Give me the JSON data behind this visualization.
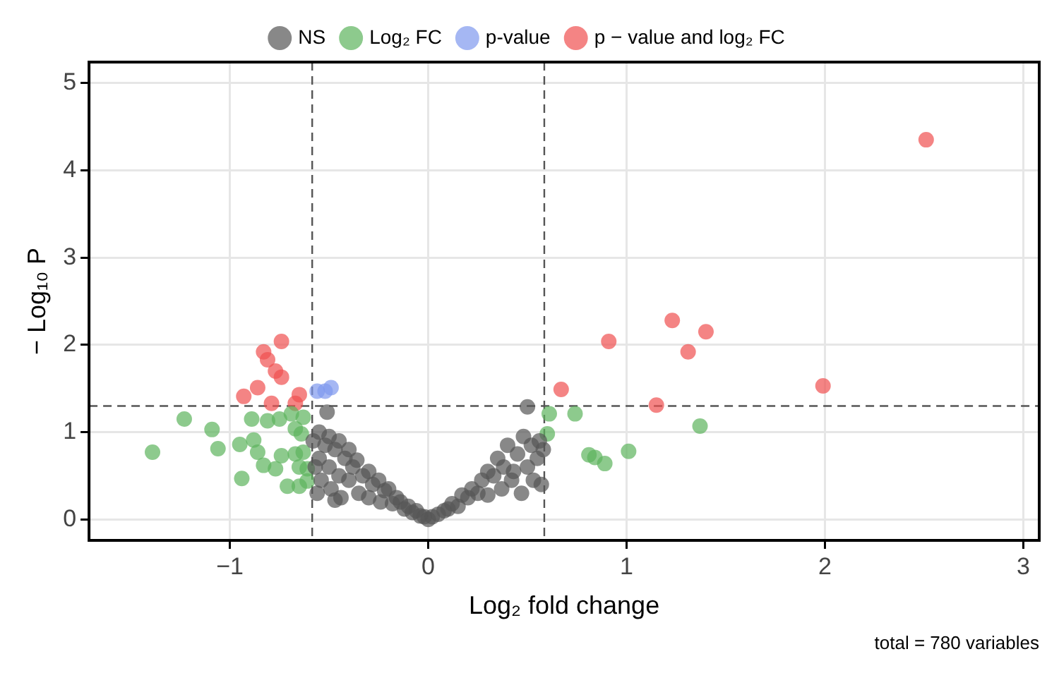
{
  "chart_data": {
    "type": "scatter",
    "xlabel": "Log₂ fold change",
    "ylabel": "− Log₁₀ P",
    "annotations": [
      "total = 780 variables"
    ],
    "xlim": [
      -1.71,
      3.08
    ],
    "ylim": [
      -0.24,
      5.24
    ],
    "xticks": [
      {
        "value": -1,
        "label": "−1"
      },
      0,
      1,
      2,
      3
    ],
    "yticks": [
      0,
      1,
      2,
      3,
      4,
      5
    ],
    "grid": true,
    "legend": "top",
    "marker": "circle",
    "ref_lines": [
      {
        "axis": "x",
        "value": -0.585,
        "color": "#555555",
        "line_style": "dashed"
      },
      {
        "axis": "x",
        "value": 0.585,
        "color": "#555555",
        "line_style": "dashed"
      },
      {
        "axis": "y",
        "value": 1.3,
        "color": "#555555",
        "line_style": "dashed"
      }
    ],
    "series": [
      {
        "name": "NS",
        "color": "#555555",
        "x": [
          -0.58,
          -0.57,
          -0.56,
          -0.55,
          -0.55,
          -0.54,
          -0.52,
          -0.51,
          -0.5,
          -0.5,
          -0.49,
          -0.47,
          -0.47,
          -0.45,
          -0.45,
          -0.44,
          -0.42,
          -0.4,
          -0.4,
          -0.38,
          -0.36,
          -0.35,
          -0.33,
          -0.3,
          -0.3,
          -0.28,
          -0.25,
          -0.24,
          -0.22,
          -0.2,
          -0.18,
          -0.16,
          -0.14,
          -0.12,
          -0.1,
          -0.08,
          -0.06,
          -0.04,
          -0.02,
          0,
          0.02,
          0.05,
          0.08,
          0.1,
          0.12,
          0.15,
          0.17,
          0.2,
          0.22,
          0.25,
          0.27,
          0.3,
          0.3,
          0.33,
          0.35,
          0.37,
          0.38,
          0.4,
          0.42,
          0.43,
          0.45,
          0.47,
          0.48,
          0.5,
          0.5,
          0.52,
          0.53,
          0.55,
          0.56,
          0.57,
          0.58
        ],
        "values": [
          0.9,
          0.6,
          0.3,
          1.0,
          0.7,
          0.45,
          0.85,
          1.23,
          0.95,
          0.6,
          0.35,
          0.8,
          0.22,
          0.9,
          0.5,
          0.25,
          0.7,
          0.8,
          0.45,
          0.6,
          0.68,
          0.3,
          0.5,
          0.55,
          0.25,
          0.4,
          0.45,
          0.2,
          0.33,
          0.35,
          0.18,
          0.25,
          0.2,
          0.12,
          0.15,
          0.08,
          0.1,
          0.04,
          0.03,
          0.0,
          0.03,
          0.06,
          0.1,
          0.12,
          0.18,
          0.15,
          0.28,
          0.25,
          0.35,
          0.3,
          0.45,
          0.55,
          0.28,
          0.5,
          0.7,
          0.35,
          0.6,
          0.85,
          0.45,
          0.55,
          0.75,
          0.3,
          0.95,
          0.6,
          1.29,
          0.85,
          0.45,
          0.7,
          0.9,
          0.4,
          0.8
        ]
      },
      {
        "name": "Log₂ FC",
        "color": "#5cb35c",
        "x": [
          -1.39,
          -1.23,
          -1.09,
          -1.06,
          -0.95,
          -0.94,
          -0.89,
          -0.88,
          -0.86,
          -0.83,
          -0.81,
          -0.77,
          -0.75,
          -0.74,
          -0.71,
          -0.69,
          -0.67,
          -0.67,
          -0.65,
          -0.65,
          -0.64,
          -0.63,
          -0.63,
          -0.61,
          -0.61,
          0.6,
          0.61,
          0.74,
          0.81,
          0.84,
          0.89,
          1.01,
          1.37
        ],
        "values": [
          0.77,
          1.15,
          1.03,
          0.81,
          0.86,
          0.47,
          1.15,
          0.91,
          0.77,
          0.62,
          1.13,
          0.58,
          1.15,
          0.73,
          0.38,
          1.21,
          1.04,
          0.75,
          0.38,
          0.6,
          0.98,
          0.77,
          1.17,
          0.44,
          0.58,
          0.98,
          1.21,
          1.21,
          0.74,
          0.71,
          0.64,
          0.78,
          1.07
        ]
      },
      {
        "name": "p-value",
        "color": "#7f98ee",
        "x": [
          -0.56,
          -0.52,
          -0.49
        ],
        "values": [
          1.47,
          1.47,
          1.51
        ]
      },
      {
        "name": "p − value and log₂ FC",
        "color": "#f05050",
        "x": [
          -0.93,
          -0.86,
          -0.83,
          -0.81,
          -0.79,
          -0.77,
          -0.74,
          -0.74,
          -0.72,
          -0.69,
          -0.67,
          -0.65,
          0.67,
          0.91,
          1.15,
          1.23,
          1.31,
          1.4,
          1.99,
          2.51
        ],
        "values": [
          1.41,
          1.51,
          1.92,
          1.83,
          1.33,
          1.7,
          2.04,
          1.63,
          null,
          null,
          1.33,
          1.43,
          1.49,
          2.04,
          1.31,
          2.28,
          1.92,
          2.15,
          1.53,
          4.35
        ]
      }
    ]
  }
}
